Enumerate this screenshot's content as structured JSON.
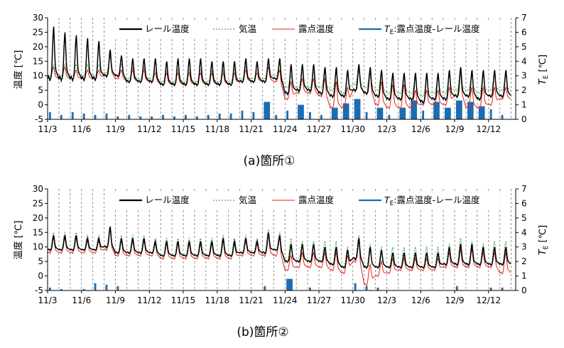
{
  "figure": {
    "charts": [
      {
        "id": "a",
        "caption": "(a)箇所①",
        "ylabel_left": "温度 [℃]",
        "ylabel_right_main": "T",
        "ylabel_right_sub": "E",
        "ylabel_right_unit": " [℃]",
        "ylim_left": [
          -5,
          30
        ],
        "yticks_left": [
          -5,
          0,
          5,
          10,
          15,
          20,
          25,
          30
        ],
        "ylim_right": [
          0,
          7
        ],
        "yticks_right": [
          0,
          1,
          2,
          3,
          4,
          5,
          6,
          7
        ],
        "xticks": [
          "11/3",
          "11/6",
          "11/9",
          "11/12",
          "11/15",
          "11/18",
          "11/21",
          "11/24",
          "11/27",
          "11/30",
          "12/3",
          "12/6",
          "12/9",
          "12/12"
        ],
        "legend": [
          "レール温度",
          "気温",
          "露点温度",
          "T_E:露点温度-レール温度"
        ],
        "legend_te_main": "T",
        "legend_te_sub": "E",
        "legend_te_rest": ":露点温度-レール温度"
      },
      {
        "id": "b",
        "caption": "(b)箇所②",
        "ylabel_left": "温度 [℃]",
        "ylabel_right_main": "T",
        "ylabel_right_sub": "E",
        "ylabel_right_unit": " [℃]",
        "ylim_left": [
          -5,
          30
        ],
        "yticks_left": [
          -5,
          0,
          5,
          10,
          15,
          20,
          25,
          30
        ],
        "ylim_right": [
          0,
          7
        ],
        "yticks_right": [
          0,
          1,
          2,
          3,
          4,
          5,
          6,
          7
        ],
        "xticks": [
          "11/3",
          "11/6",
          "11/9",
          "11/12",
          "11/15",
          "11/18",
          "11/21",
          "11/24",
          "11/27",
          "11/30",
          "12/3",
          "12/6",
          "12/9",
          "12/12"
        ],
        "legend": [
          "レール温度",
          "気温",
          "露点温度",
          "T_E:露点温度-レール温度"
        ],
        "legend_te_main": "T",
        "legend_te_sub": "E",
        "legend_te_rest": ":露点温度-レール温度"
      }
    ]
  },
  "chart_data": [
    {
      "type": "line",
      "title": "(a)箇所①",
      "x_unit": "date",
      "x_range": [
        "11/3",
        "12/14"
      ],
      "ylabel": "温度 [℃]",
      "ylabel_right": "T_E [℃]",
      "ylim": [
        -5,
        30
      ],
      "ylim_right": [
        0,
        7
      ],
      "legend_position": "top",
      "grid": "dashed vertical lines at daily boundaries",
      "colors": {
        "rail": "#000000",
        "air": "#1a9a3c",
        "dew": "#e0261c",
        "te": "#1b6db3"
      },
      "daily_max": {
        "dates": [
          "11/3",
          "11/4",
          "11/5",
          "11/6",
          "11/7",
          "11/8",
          "11/9",
          "11/10",
          "11/11",
          "11/12",
          "11/13",
          "11/14",
          "11/15",
          "11/16",
          "11/17",
          "11/18",
          "11/19",
          "11/20",
          "11/21",
          "11/22",
          "11/23",
          "11/24",
          "11/25",
          "11/26",
          "11/27",
          "11/28",
          "11/29",
          "11/30",
          "12/1",
          "12/2",
          "12/3",
          "12/4",
          "12/5",
          "12/6",
          "12/7",
          "12/8",
          "12/9",
          "12/10",
          "12/11",
          "12/12",
          "12/13"
        ],
        "rail": [
          27,
          25,
          24,
          23,
          22,
          19,
          17,
          16,
          16,
          16,
          15,
          16,
          16,
          16,
          15,
          15,
          15,
          16,
          15,
          16,
          16,
          14,
          14,
          14,
          13,
          13,
          12,
          14,
          13,
          12,
          11,
          11,
          11,
          11,
          11,
          12,
          13,
          12,
          12,
          12,
          12
        ],
        "air": [
          14,
          14,
          14,
          14,
          14,
          17,
          14,
          13,
          13,
          12,
          12,
          12,
          12,
          12,
          12,
          12,
          12,
          13,
          12,
          14,
          14,
          10,
          11,
          11,
          11,
          11,
          10,
          13,
          12,
          11,
          10,
          10,
          9,
          9,
          9,
          10,
          12,
          10,
          10,
          10,
          10
        ],
        "dew": [
          13,
          13,
          12,
          12,
          12,
          17,
          12,
          12,
          12,
          11,
          11,
          11,
          11,
          11,
          11,
          11,
          11,
          12,
          11,
          13,
          12,
          8,
          9,
          9,
          9,
          8,
          6,
          12,
          11,
          8,
          7,
          7,
          5,
          5,
          5,
          6,
          11,
          6,
          6,
          6,
          6
        ]
      },
      "daily_min": {
        "rail": [
          9,
          9,
          9,
          9,
          9,
          10,
          10,
          8,
          8,
          8,
          7,
          7,
          7,
          7,
          7,
          7,
          7,
          8,
          8,
          8,
          9,
          4,
          5,
          5,
          4,
          3,
          3,
          5,
          4,
          3,
          2,
          2,
          2,
          1,
          2,
          2,
          3,
          3,
          2,
          3,
          3
        ],
        "air": [
          10,
          10,
          10,
          10,
          10,
          11,
          10,
          9,
          9,
          9,
          8,
          8,
          8,
          8,
          8,
          8,
          8,
          9,
          9,
          9,
          10,
          6,
          6,
          6,
          6,
          5,
          4,
          7,
          6,
          5,
          4,
          4,
          4,
          3,
          4,
          4,
          5,
          5,
          4,
          5,
          5
        ],
        "dew": [
          9,
          9,
          9,
          9,
          9,
          10,
          9,
          8,
          8,
          8,
          7,
          7,
          7,
          7,
          7,
          7,
          7,
          8,
          8,
          8,
          8,
          2,
          4,
          4,
          3,
          -1,
          -1,
          5,
          4,
          0,
          -1,
          -1,
          -1,
          0,
          0,
          0,
          3,
          -1,
          -1,
          0,
          2
        ]
      },
      "te_daily_peak": [
        0.5,
        0.3,
        0.5,
        0.4,
        0.3,
        0.4,
        0.2,
        0.3,
        0.2,
        0.2,
        0.3,
        0.2,
        0.3,
        0.2,
        0.3,
        0.4,
        0.4,
        0.6,
        0.5,
        1.2,
        0.3,
        0.6,
        1.0,
        0.5,
        0.3,
        0.8,
        1.1,
        1.4,
        0.5,
        0.8,
        0.3,
        0.8,
        1.3,
        0.6,
        1.2,
        0.8,
        1.3,
        1.2,
        0.9,
        0.7,
        0.3
      ]
    },
    {
      "type": "line",
      "title": "(b)箇所②",
      "x_unit": "date",
      "x_range": [
        "11/3",
        "12/14"
      ],
      "ylabel": "温度 [℃]",
      "ylabel_right": "T_E [℃]",
      "ylim": [
        -5,
        30
      ],
      "ylim_right": [
        0,
        7
      ],
      "legend_position": "top",
      "grid": "dashed vertical lines at daily boundaries",
      "colors": {
        "rail": "#000000",
        "air": "#1a9a3c",
        "dew": "#e0261c",
        "te": "#1b6db3"
      },
      "daily_max": {
        "dates": [
          "11/3",
          "11/4",
          "11/5",
          "11/6",
          "11/7",
          "11/8",
          "11/9",
          "11/10",
          "11/11",
          "11/12",
          "11/13",
          "11/14",
          "11/15",
          "11/16",
          "11/17",
          "11/18",
          "11/19",
          "11/20",
          "11/21",
          "11/22",
          "11/23",
          "11/24",
          "11/25",
          "11/26",
          "11/27",
          "11/28",
          "11/29",
          "11/30",
          "12/1",
          "12/2",
          "12/3",
          "12/4",
          "12/5",
          "12/6",
          "12/7",
          "12/8",
          "12/9",
          "12/10",
          "12/11",
          "12/12",
          "12/13"
        ],
        "rail": [
          14,
          14,
          14,
          13,
          13,
          17,
          13,
          13,
          13,
          12,
          12,
          12,
          12,
          12,
          12,
          13,
          12,
          13,
          12,
          15,
          14,
          11,
          11,
          11,
          10,
          10,
          9,
          13,
          10,
          9,
          8,
          8,
          8,
          8,
          8,
          10,
          11,
          11,
          10,
          10,
          10
        ],
        "air": [
          15,
          15,
          15,
          14,
          14,
          17,
          14,
          14,
          14,
          13,
          13,
          13,
          13,
          13,
          13,
          14,
          13,
          14,
          13,
          16,
          15,
          13,
          12,
          12,
          12,
          12,
          10,
          14,
          11,
          10,
          10,
          10,
          10,
          10,
          10,
          11,
          13,
          12,
          11,
          12,
          12
        ],
        "dew": [
          13,
          13,
          13,
          12,
          12,
          16,
          12,
          12,
          12,
          11,
          11,
          11,
          11,
          11,
          11,
          12,
          11,
          12,
          11,
          14,
          13,
          7,
          8,
          8,
          8,
          8,
          7,
          12,
          4,
          5,
          6,
          6,
          6,
          6,
          6,
          8,
          9,
          9,
          8,
          8,
          8
        ]
      },
      "daily_min": {
        "rail": [
          9,
          9,
          9,
          9,
          9,
          10,
          8,
          8,
          8,
          8,
          7,
          7,
          7,
          7,
          7,
          7,
          7,
          8,
          8,
          8,
          9,
          5,
          5,
          5,
          5,
          4,
          3,
          6,
          3,
          3,
          3,
          3,
          3,
          3,
          3,
          4,
          4,
          4,
          4,
          4,
          4
        ],
        "air": [
          9,
          9,
          9,
          9,
          9,
          10,
          8,
          8,
          8,
          8,
          7,
          7,
          7,
          7,
          7,
          7,
          7,
          8,
          8,
          8,
          9,
          5,
          5,
          5,
          5,
          4,
          3,
          6,
          3,
          3,
          3,
          3,
          3,
          3,
          3,
          4,
          4,
          4,
          4,
          4,
          4
        ],
        "dew": [
          8,
          8,
          8,
          8,
          8,
          9,
          7,
          7,
          7,
          7,
          6,
          6,
          6,
          6,
          6,
          6,
          6,
          7,
          7,
          7,
          7,
          2,
          3,
          3,
          3,
          2,
          1,
          5,
          -3,
          0,
          1,
          2,
          2,
          2,
          2,
          3,
          3,
          3,
          3,
          3,
          1
        ]
      },
      "te_daily_peak": [
        0.2,
        0.1,
        0.0,
        0.1,
        0.5,
        0.4,
        0.3,
        0.0,
        0.0,
        0.0,
        0.0,
        0.0,
        0.0,
        0.0,
        0.0,
        0.0,
        0.0,
        0.0,
        0.0,
        0.3,
        0.0,
        0.8,
        0.0,
        0.2,
        0.0,
        0.0,
        0.0,
        0.5,
        0.3,
        0.2,
        0.0,
        0.0,
        0.0,
        0.0,
        0.0,
        0.0,
        0.3,
        0.0,
        0.0,
        0.2,
        0.2
      ]
    }
  ]
}
